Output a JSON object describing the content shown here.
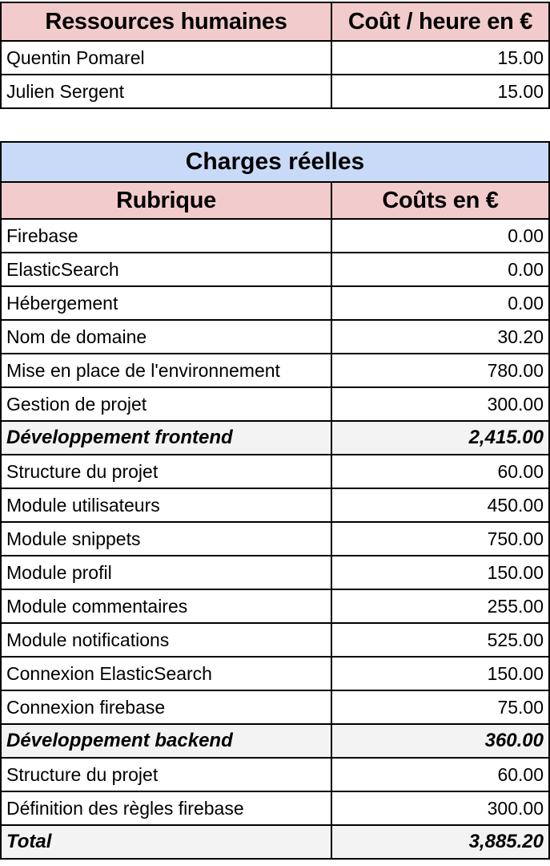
{
  "ressources": {
    "header": {
      "col1": "Ressources humaines",
      "col2": "Coût / heure en €"
    },
    "rows": [
      {
        "name": "Quentin Pomarel",
        "value": "15.00"
      },
      {
        "name": "Julien Sergent",
        "value": "15.00"
      }
    ]
  },
  "charges": {
    "title": "Charges réelles",
    "header": {
      "col1": "Rubrique",
      "col2": "Coûts en €"
    },
    "rows": [
      {
        "name": "Firebase",
        "value": "0.00",
        "kind": "row"
      },
      {
        "name": "ElasticSearch",
        "value": "0.00",
        "kind": "row"
      },
      {
        "name": "Hébergement",
        "value": "0.00",
        "kind": "row"
      },
      {
        "name": "Nom de domaine",
        "value": "30.20",
        "kind": "row"
      },
      {
        "name": "Mise en place de l'environnement",
        "value": "780.00",
        "kind": "row"
      },
      {
        "name": "Gestion de projet",
        "value": "300.00",
        "kind": "row"
      },
      {
        "name": "Développement frontend",
        "value": "2,415.00",
        "kind": "group"
      },
      {
        "name": "Structure du projet",
        "value": "60.00",
        "kind": "row"
      },
      {
        "name": "Module utilisateurs",
        "value": "450.00",
        "kind": "row"
      },
      {
        "name": "Module snippets",
        "value": "750.00",
        "kind": "row"
      },
      {
        "name": "Module profil",
        "value": "150.00",
        "kind": "row"
      },
      {
        "name": "Module commentaires",
        "value": "255.00",
        "kind": "row"
      },
      {
        "name": "Module notifications",
        "value": "525.00",
        "kind": "row"
      },
      {
        "name": "Connexion ElasticSearch",
        "value": "150.00",
        "kind": "row"
      },
      {
        "name": "Connexion firebase",
        "value": "75.00",
        "kind": "row"
      },
      {
        "name": "Développement backend",
        "value": "360.00",
        "kind": "group"
      },
      {
        "name": "Structure du projet",
        "value": "60.00",
        "kind": "row"
      },
      {
        "name": "Définition des règles firebase",
        "value": "300.00",
        "kind": "row"
      }
    ],
    "total": {
      "label": "Total",
      "value": "3,885.20"
    }
  },
  "colors": {
    "header_bg": "#f2cccc",
    "title_bg": "#c9daf8",
    "group_bg": "#f3f3f3",
    "border": "#000000"
  }
}
